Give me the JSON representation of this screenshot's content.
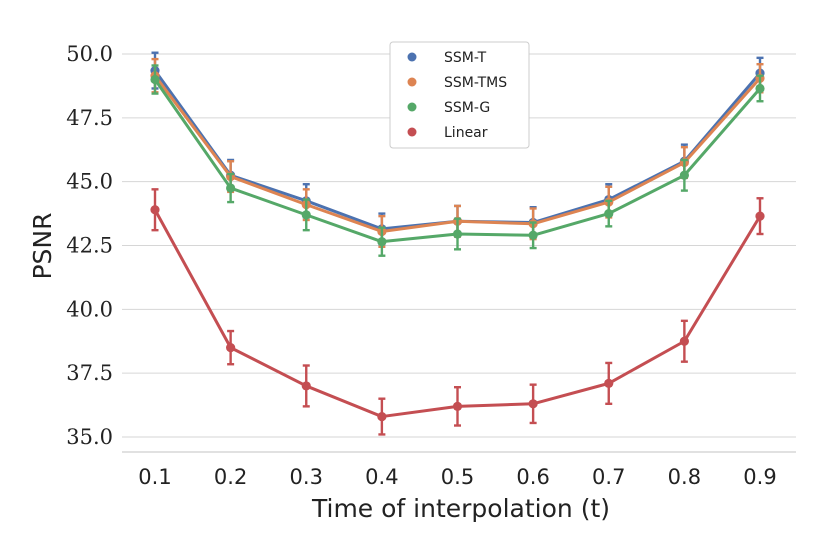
{
  "chart_data": {
    "type": "line",
    "title": "",
    "xlabel": "Time of interpolation (t)",
    "ylabel": "PSNR",
    "x": [
      0.1,
      0.2,
      0.3,
      0.4,
      0.5,
      0.6,
      0.7,
      0.8,
      0.9
    ],
    "x_tick_labels": [
      "0.1",
      "0.2",
      "0.3",
      "0.4",
      "0.5",
      "0.6",
      "0.7",
      "0.8",
      "0.9"
    ],
    "y_ticks": [
      35.0,
      37.5,
      40.0,
      42.5,
      45.0,
      47.5,
      50.0
    ],
    "y_tick_labels": [
      "35.0",
      "37.5",
      "40.0",
      "42.5",
      "45.0",
      "47.5",
      "50.0"
    ],
    "ylim": [
      34.7,
      50.2
    ],
    "grid": true,
    "legend_position": "top-center",
    "series": [
      {
        "name": "SSM-T",
        "color": "#4c72b0",
        "values": [
          49.35,
          45.25,
          44.25,
          43.15,
          43.45,
          43.4,
          44.3,
          45.8,
          49.25
        ],
        "errors": [
          0.7,
          0.6,
          0.65,
          0.6,
          0.6,
          0.6,
          0.6,
          0.65,
          0.6
        ]
      },
      {
        "name": "SSM-TMS",
        "color": "#dd8452",
        "values": [
          49.15,
          45.2,
          44.1,
          43.05,
          43.45,
          43.35,
          44.2,
          45.75,
          49.05
        ],
        "errors": [
          0.65,
          0.6,
          0.6,
          0.6,
          0.6,
          0.6,
          0.6,
          0.6,
          0.55
        ]
      },
      {
        "name": "SSM-G",
        "color": "#55a868",
        "values": [
          49.0,
          44.75,
          43.7,
          42.65,
          42.95,
          42.9,
          43.75,
          45.25,
          48.65
        ],
        "errors": [
          0.55,
          0.55,
          0.6,
          0.55,
          0.6,
          0.5,
          0.5,
          0.6,
          0.5
        ]
      },
      {
        "name": "Linear",
        "color": "#c44e52",
        "values": [
          43.9,
          38.5,
          37.0,
          35.8,
          36.2,
          36.3,
          37.1,
          38.75,
          43.65
        ],
        "errors": [
          0.8,
          0.65,
          0.8,
          0.7,
          0.75,
          0.75,
          0.8,
          0.8,
          0.7
        ]
      }
    ]
  }
}
